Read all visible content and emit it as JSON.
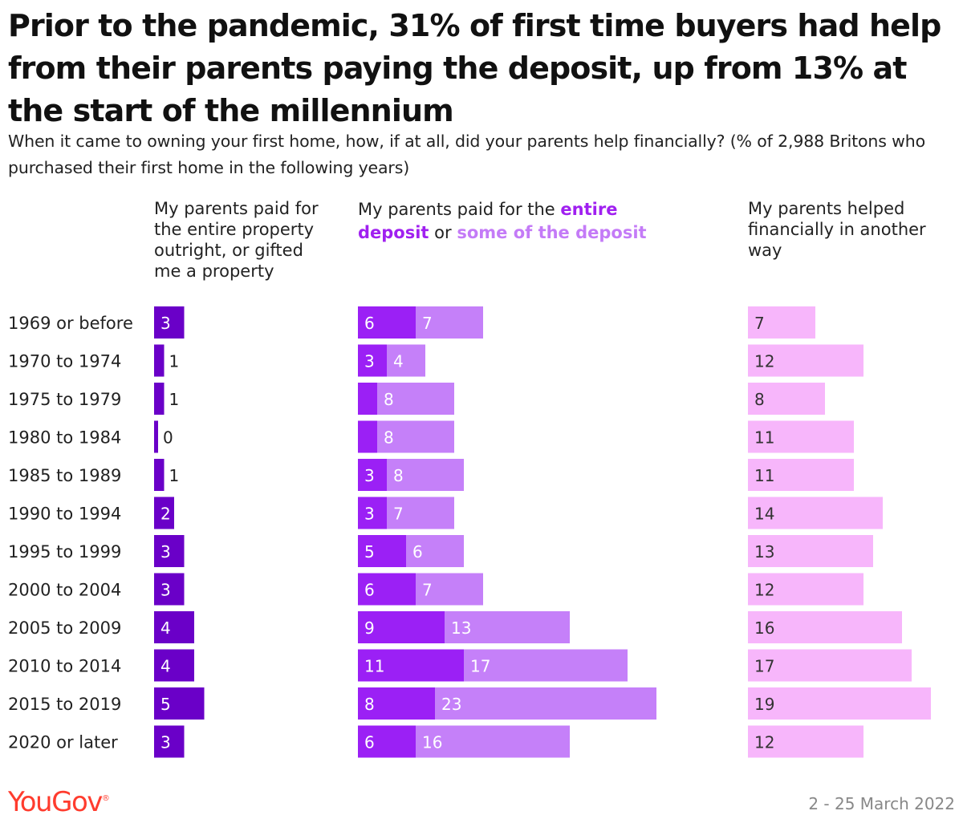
{
  "title": "Prior to the pandemic, 31% of first time buyers had help from their parents paying the deposit, up from 13% at the start of the millennium",
  "subtitle": "When it came to owning your first home, how, if at all, did your parents help financially? (% of 2,988 Britons who purchased their first home in the following years)",
  "column_headers": {
    "outright": "My parents paid for the entire property outright, or gifted me a property",
    "deposit_prefix": "My parents paid for the ",
    "deposit_entire": "entire deposit",
    "deposit_or": " or ",
    "deposit_some": "some of the deposit",
    "other": "My parents helped financially in another way"
  },
  "footer": {
    "logo": "YouGov",
    "logo_mark": "®",
    "date": "2 - 25 March 2022"
  },
  "colors": {
    "outright": "#6a00c8",
    "entire_deposit": "#9b20f5",
    "some_deposit": "#c580f9",
    "other": "#f7b6fb",
    "label_dark": "#ffffff",
    "label_other": "#333333",
    "logo": "#ff3c2e"
  },
  "chart_data": {
    "type": "bar",
    "orientation": "horizontal",
    "categories": [
      "1969 or before",
      "1970 to 1974",
      "1975 to 1979",
      "1980 to 1984",
      "1985 to 1989",
      "1990 to 1994",
      "1995 to 1999",
      "2000 to 2004",
      "2005 to 2009",
      "2010 to 2014",
      "2015 to 2019",
      "2020 or later"
    ],
    "panels": [
      {
        "name": "My parents paid for the entire property outright, or gifted me a property",
        "series": [
          {
            "name": "",
            "values": [
              3,
              1,
              1,
              0,
              1,
              2,
              3,
              3,
              4,
              4,
              5,
              3
            ],
            "labels": [
              "3",
              "1",
              "1",
              "0",
              "1",
              "2",
              "3",
              "3",
              "4",
              "4",
              "5",
              "3"
            ]
          }
        ]
      },
      {
        "name": "My parents paid for the entire deposit or some of the deposit",
        "stacked": true,
        "series": [
          {
            "name": "entire deposit",
            "values": [
              6,
              3,
              2,
              2,
              3,
              3,
              5,
              6,
              9,
              11,
              8,
              6
            ],
            "labels": [
              "6",
              "3",
              "",
              "",
              "3",
              "3",
              "5",
              "6",
              "9",
              "11",
              "8",
              "6"
            ]
          },
          {
            "name": "some of the deposit",
            "values": [
              7,
              4,
              8,
              8,
              8,
              7,
              6,
              7,
              13,
              17,
              23,
              16
            ],
            "labels": [
              "7",
              "4",
              "8",
              "8",
              "8",
              "7",
              "6",
              "7",
              "13",
              "17",
              "23",
              "16"
            ]
          }
        ]
      },
      {
        "name": "My parents helped financially in another way",
        "series": [
          {
            "name": "",
            "values": [
              7,
              12,
              8,
              11,
              11,
              14,
              13,
              12,
              16,
              17,
              19,
              12
            ],
            "labels": [
              "7",
              "12",
              "8",
              "11",
              "11",
              "14",
              "13",
              "12",
              "16",
              "17",
              "19",
              "12"
            ]
          }
        ]
      }
    ],
    "unit": "%"
  }
}
